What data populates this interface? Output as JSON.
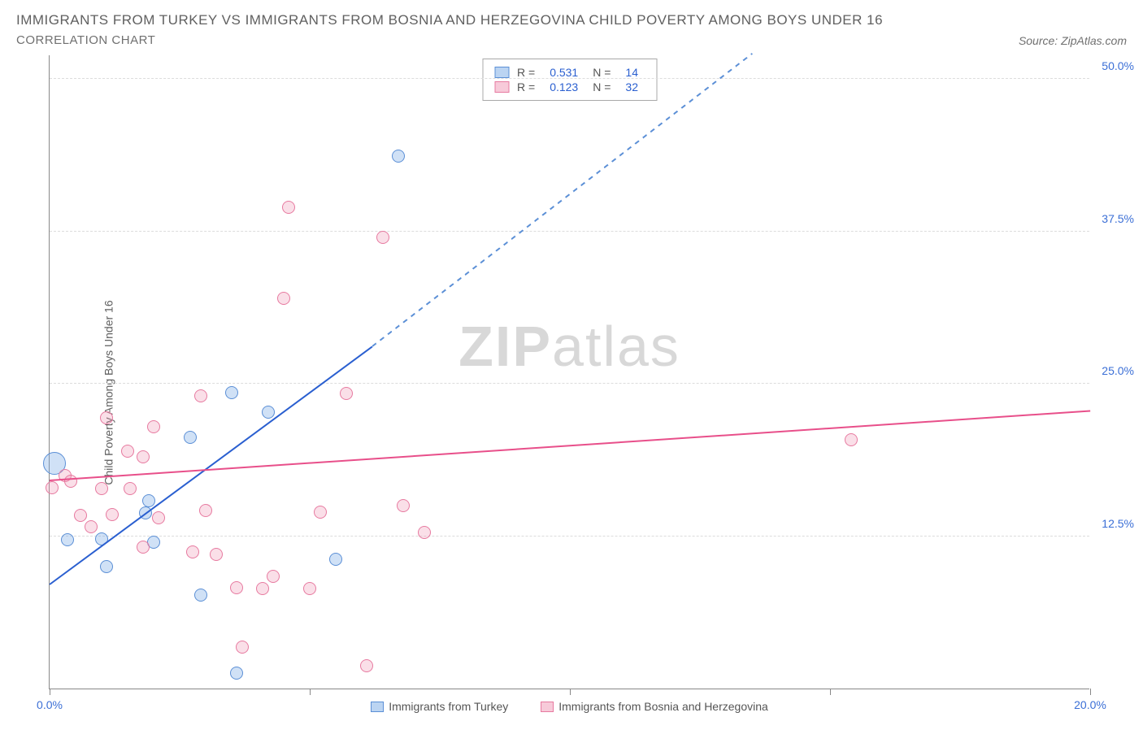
{
  "title": "IMMIGRANTS FROM TURKEY VS IMMIGRANTS FROM BOSNIA AND HERZEGOVINA CHILD POVERTY AMONG BOYS UNDER 16",
  "subtitle": "CORRELATION CHART",
  "source_label": "Source:",
  "source_name": "ZipAtlas.com",
  "ylabel": "Child Poverty Among Boys Under 16",
  "watermark_bold": "ZIP",
  "watermark_light": "atlas",
  "chart": {
    "type": "scatter",
    "xlim": [
      0,
      20
    ],
    "ylim": [
      0,
      52
    ],
    "x_ticks": [
      0,
      5,
      10,
      15,
      20
    ],
    "x_tick_labels": [
      "0.0%",
      "",
      "",
      "",
      "20.0%"
    ],
    "y_ticks": [
      12.5,
      25,
      37.5,
      50
    ],
    "y_tick_labels": [
      "12.5%",
      "25.0%",
      "37.5%",
      "50.0%"
    ],
    "grid_color": "#dcdcdc",
    "axis_color": "#888888",
    "background": "#ffffff",
    "series": [
      {
        "name": "Immigrants from Turkey",
        "color_fill": "rgba(120,170,230,0.35)",
        "color_stroke": "#5b8fd6",
        "R": 0.531,
        "N": 14,
        "trend": {
          "x1": 0,
          "y1": 8.5,
          "x2": 6.2,
          "y2": 28,
          "extrap_x2": 13.5,
          "extrap_y2": 52,
          "color": "#2a5fd0"
        },
        "points": [
          {
            "x": 0.1,
            "y": 18.5,
            "r": 14
          },
          {
            "x": 0.35,
            "y": 12.2,
            "r": 8
          },
          {
            "x": 1.0,
            "y": 12.3,
            "r": 8
          },
          {
            "x": 1.1,
            "y": 10.0,
            "r": 8
          },
          {
            "x": 1.9,
            "y": 15.4,
            "r": 8
          },
          {
            "x": 1.85,
            "y": 14.4,
            "r": 8
          },
          {
            "x": 2.0,
            "y": 12.0,
            "r": 8
          },
          {
            "x": 2.7,
            "y": 20.6,
            "r": 8
          },
          {
            "x": 2.9,
            "y": 7.7,
            "r": 8
          },
          {
            "x": 3.5,
            "y": 24.3,
            "r": 8
          },
          {
            "x": 3.6,
            "y": 1.3,
            "r": 8
          },
          {
            "x": 4.2,
            "y": 22.7,
            "r": 8
          },
          {
            "x": 5.5,
            "y": 10.6,
            "r": 8
          },
          {
            "x": 6.7,
            "y": 43.7,
            "r": 8
          }
        ]
      },
      {
        "name": "Immigrants from Bosnia and Herzegovina",
        "color_fill": "rgba(240,150,180,0.30)",
        "color_stroke": "#e77aa0",
        "R": 0.123,
        "N": 32,
        "trend": {
          "x1": 0,
          "y1": 17,
          "x2": 20,
          "y2": 22.7,
          "color": "#e84f8a"
        },
        "points": [
          {
            "x": 0.05,
            "y": 16.5,
            "r": 8
          },
          {
            "x": 0.3,
            "y": 17.5,
            "r": 8
          },
          {
            "x": 0.4,
            "y": 17.0,
            "r": 8
          },
          {
            "x": 0.6,
            "y": 14.2,
            "r": 8
          },
          {
            "x": 0.8,
            "y": 13.3,
            "r": 8
          },
          {
            "x": 1.0,
            "y": 16.4,
            "r": 8
          },
          {
            "x": 1.1,
            "y": 22.2,
            "r": 8
          },
          {
            "x": 1.2,
            "y": 14.3,
            "r": 8
          },
          {
            "x": 1.5,
            "y": 19.5,
            "r": 8
          },
          {
            "x": 1.55,
            "y": 16.4,
            "r": 8
          },
          {
            "x": 1.8,
            "y": 19.0,
            "r": 8
          },
          {
            "x": 1.8,
            "y": 11.6,
            "r": 8
          },
          {
            "x": 2.0,
            "y": 21.5,
            "r": 8
          },
          {
            "x": 2.1,
            "y": 14.0,
            "r": 8
          },
          {
            "x": 2.75,
            "y": 11.2,
            "r": 8
          },
          {
            "x": 2.9,
            "y": 24.0,
            "r": 8
          },
          {
            "x": 3.0,
            "y": 14.6,
            "r": 8
          },
          {
            "x": 3.2,
            "y": 11.0,
            "r": 8
          },
          {
            "x": 3.6,
            "y": 8.3,
            "r": 8
          },
          {
            "x": 3.7,
            "y": 3.4,
            "r": 8
          },
          {
            "x": 4.1,
            "y": 8.2,
            "r": 8
          },
          {
            "x": 4.3,
            "y": 9.2,
            "r": 8
          },
          {
            "x": 4.5,
            "y": 32.0,
            "r": 8
          },
          {
            "x": 4.6,
            "y": 39.5,
            "r": 8
          },
          {
            "x": 5.0,
            "y": 8.2,
            "r": 8
          },
          {
            "x": 5.2,
            "y": 14.5,
            "r": 8
          },
          {
            "x": 5.7,
            "y": 24.2,
            "r": 8
          },
          {
            "x": 6.1,
            "y": 1.9,
            "r": 8
          },
          {
            "x": 6.4,
            "y": 37.0,
            "r": 8
          },
          {
            "x": 6.8,
            "y": 15.0,
            "r": 8
          },
          {
            "x": 7.2,
            "y": 12.8,
            "r": 8
          },
          {
            "x": 15.4,
            "y": 20.4,
            "r": 8
          }
        ]
      }
    ],
    "legend_labels": {
      "R": "R =",
      "N": "N ="
    }
  }
}
